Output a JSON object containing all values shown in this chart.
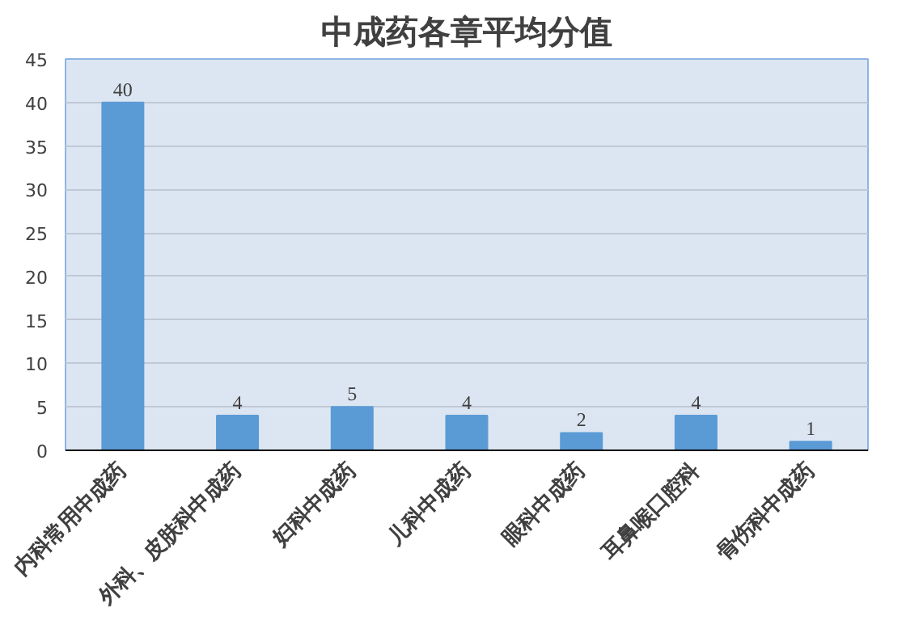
{
  "chart_data": {
    "type": "bar",
    "title": "中成药各章平均分值",
    "categories": [
      "内科常用中成药",
      "外科、皮肤科中成药",
      "妇科中成药",
      "儿科中成药",
      "眼科中成药",
      "耳鼻喉口腔科",
      "骨伤科中成药"
    ],
    "values": [
      40,
      4,
      5,
      4,
      2,
      4,
      1
    ],
    "color": "#5b9bd5",
    "ylim": [
      0,
      45
    ],
    "yticks": [
      0,
      5,
      10,
      15,
      20,
      25,
      30,
      35,
      40,
      45
    ],
    "grid": "y",
    "data_labels": true
  }
}
